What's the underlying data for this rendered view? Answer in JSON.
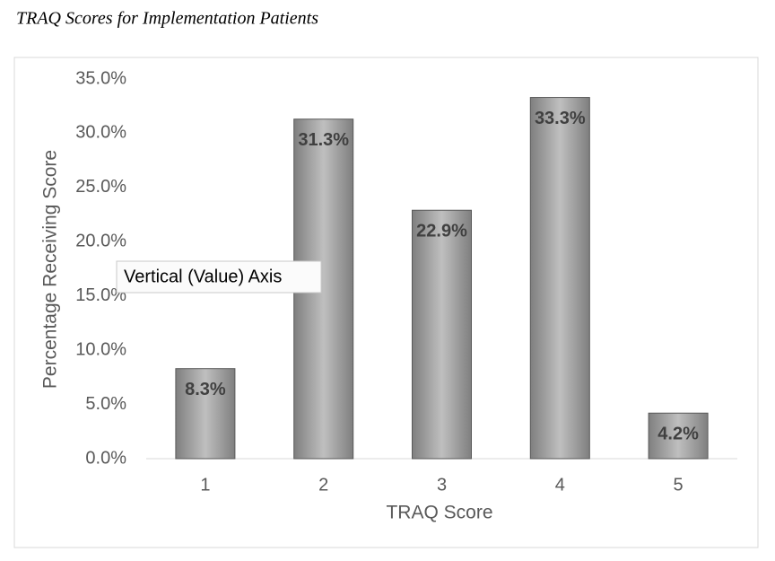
{
  "chart_data": {
    "type": "bar",
    "title": "TRAQ Scores for Implementation Patients",
    "x_label": "TRAQ Score",
    "y_label": "Percentage Receiving Score",
    "categories": [
      "1",
      "2",
      "3",
      "4",
      "5"
    ],
    "values": [
      8.3,
      31.3,
      22.9,
      33.3,
      4.2
    ],
    "value_labels": [
      "8.3%",
      "31.3%",
      "22.9%",
      "33.3%",
      "4.2%"
    ],
    "color": "#a6a6a6",
    "ylim": [
      0,
      35
    ],
    "yticks": [
      {
        "value": 0,
        "label": "0.0%"
      },
      {
        "value": 5,
        "label": "5.0%"
      },
      {
        "value": 10,
        "label": "10.0%"
      },
      {
        "value": 15,
        "label": "15.0%"
      },
      {
        "value": 20,
        "label": "20.0%"
      },
      {
        "value": 25,
        "label": "25.0%"
      },
      {
        "value": 30,
        "label": "30.0%"
      },
      {
        "value": 35,
        "label": "35.0%"
      }
    ],
    "grid": false,
    "tooltip": "Vertical (Value) Axis"
  }
}
